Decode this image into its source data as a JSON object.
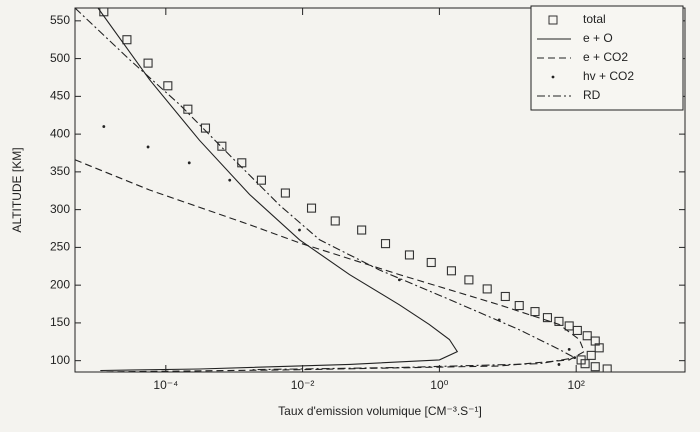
{
  "chart_data": {
    "type": "line",
    "xlabel": "Taux d'emission volumique [CM⁻³.S⁻¹]",
    "ylabel": "ALTITUDE [KM]",
    "xscale": "log",
    "xlim": [
      4.7e-06,
      3900
    ],
    "ylim": [
      85,
      567
    ],
    "xticks": [
      {
        "value": 0.0001,
        "label": "10⁻⁴"
      },
      {
        "value": 0.01,
        "label": "10⁻²"
      },
      {
        "value": 1,
        "label": "10⁰"
      },
      {
        "value": 100,
        "label": "10²"
      }
    ],
    "yticks": [
      100,
      150,
      200,
      250,
      300,
      350,
      400,
      450,
      500,
      550
    ],
    "legend": "upper right",
    "series": [
      {
        "name": "total",
        "color": "#333333",
        "style": "squares",
        "x": [
          1.24e-05,
          2.7e-05,
          5.5e-05,
          0.000107,
          0.00021,
          0.00038,
          0.00066,
          0.00129,
          0.0025,
          0.0056,
          0.0135,
          0.03,
          0.073,
          0.163,
          0.365,
          0.76,
          1.5,
          2.7,
          5.0,
          9.2,
          14.7,
          25,
          38,
          56,
          79,
          104,
          145,
          190,
          217,
          166,
          118,
          135,
          190,
          284
        ],
        "values": [
          562,
          525,
          494,
          464,
          433,
          408,
          384,
          362,
          339,
          322,
          302,
          285,
          273,
          255,
          240,
          230,
          219,
          207,
          195,
          185,
          173,
          165,
          157,
          152,
          146,
          140,
          133,
          126,
          117,
          107,
          101,
          96,
          92,
          89
        ]
      },
      {
        "name": "e + O",
        "color": "#222222",
        "style": "solid",
        "x": [
          1.02e-05,
          5.8e-05,
          0.00031,
          0.00168,
          0.009,
          0.0485,
          0.26,
          0.71,
          1.4,
          1.83,
          1.0,
          0.0485,
          0.00031,
          1.1e-05
        ],
        "values": [
          567,
          472,
          392,
          320,
          260,
          214,
          174,
          148,
          128,
          112,
          101,
          95,
          89,
          87
        ]
      },
      {
        "name": "e + CO2",
        "color": "#222222",
        "style": "dashed",
        "x": [
          4.7e-06,
          5.8e-05,
          0.00168,
          0.009,
          0.26,
          7.5,
          56,
          111,
          131,
          79,
          7.5,
          0.009,
          1.1e-05
        ],
        "values": [
          366,
          326,
          280,
          256,
          214,
          174,
          148,
          128,
          112,
          101,
          93,
          88,
          85
        ]
      },
      {
        "name": "hv + CO2",
        "color": "#222222",
        "style": "dots",
        "x": [
          1.24e-05,
          5.5e-05,
          0.00022,
          0.00086,
          0.009,
          0.26,
          7.5,
          79,
          95,
          56
        ],
        "values": [
          410,
          383,
          362,
          339,
          273,
          207,
          154,
          115,
          104,
          95
        ]
      },
      {
        "name": "RD",
        "color": "#222222",
        "style": "dashdot",
        "x": [
          4.7e-06,
          3e-05,
          0.00016,
          0.00086,
          0.0046,
          0.0177,
          0.133,
          1.4,
          14.7,
          56,
          95,
          29,
          0.26,
          0.00168
        ],
        "values": [
          567,
          498,
          439,
          372,
          306,
          260,
          220,
          181,
          141,
          115,
          104,
          96,
          91,
          88
        ]
      }
    ]
  }
}
